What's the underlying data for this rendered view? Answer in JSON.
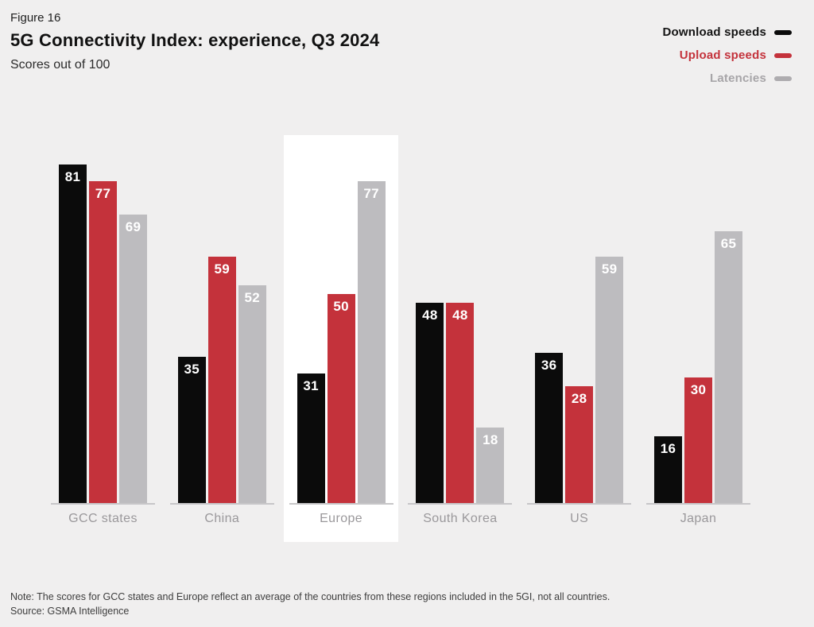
{
  "figure_label": "Figure 16",
  "title": "5G Connectivity Index: experience, Q3 2024",
  "subtitle": "Scores out of 100",
  "legend": [
    {
      "label": "Download speeds",
      "swatch_color": "#0b0b0b",
      "text_color": "#141414"
    },
    {
      "label": "Upload speeds",
      "swatch_color": "#c4323b",
      "text_color": "#c4323b"
    },
    {
      "label": "Latencies",
      "swatch_color": "#aeacaf",
      "text_color": "#a7a5a8"
    }
  ],
  "chart_data": {
    "type": "bar",
    "categories": [
      "GCC states",
      "China",
      "Europe",
      "South Korea",
      "US",
      "Japan"
    ],
    "series": [
      {
        "name": "Download speeds",
        "color": "#0b0b0b",
        "values": [
          81,
          35,
          31,
          48,
          36,
          16
        ]
      },
      {
        "name": "Upload speeds",
        "color": "#c4323b",
        "values": [
          77,
          59,
          50,
          48,
          28,
          30
        ]
      },
      {
        "name": "Latencies",
        "color": "#bdbcbf",
        "values": [
          69,
          52,
          77,
          18,
          59,
          65
        ]
      }
    ],
    "ylim": [
      0,
      100
    ],
    "grid": false,
    "legend_position": "top-right",
    "value_labels": "inside-top",
    "highlighted_category": "Europe",
    "highlight_color": "#ffffff",
    "background_color": "#f0efef"
  },
  "note": "Note: The scores for GCC states and Europe reflect an average of the countries from these regions included in the 5GI, not all countries.",
  "source": "Source: GSMA Intelligence"
}
